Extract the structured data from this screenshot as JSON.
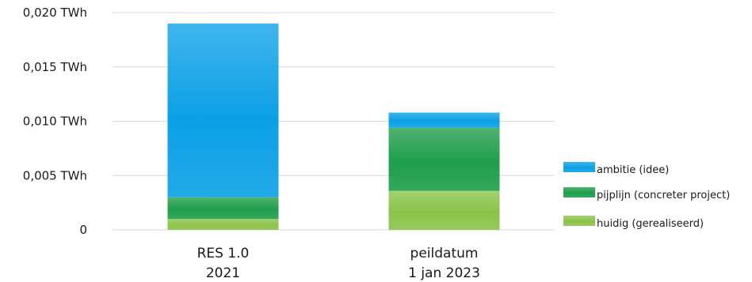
{
  "chart_data": {
    "type": "bar",
    "stacked": true,
    "categories": [
      {
        "line1": "RES 1.0",
        "line2": "2021"
      },
      {
        "line1": "peildatum",
        "line2": "1 jan 2023"
      }
    ],
    "series": [
      {
        "name": "huidig (gerealiseerd)",
        "values": [
          0.001,
          0.0036
        ],
        "color": "#8bc34a"
      },
      {
        "name": "pijplijn (concreter project)",
        "values": [
          0.002,
          0.0058
        ],
        "color": "#1e9e4a"
      },
      {
        "name": "ambitie (idee)",
        "values": [
          0.016,
          0.0014
        ],
        "color": "#0aa0e6"
      }
    ],
    "ylim": [
      0,
      0.02
    ],
    "yticks": [
      {
        "value": 0,
        "label": "0"
      },
      {
        "value": 0.005,
        "label": "0,005 TWh"
      },
      {
        "value": 0.01,
        "label": "0,010 TWh"
      },
      {
        "value": 0.015,
        "label": "0,015 TWh"
      },
      {
        "value": 0.02,
        "label": "0,020 TWh"
      }
    ],
    "legend": {
      "placement": "right",
      "order": [
        "ambitie (idee)",
        "pijplijn (concreter project)",
        "huidig (gerealiseerd)"
      ]
    },
    "grid": true
  }
}
